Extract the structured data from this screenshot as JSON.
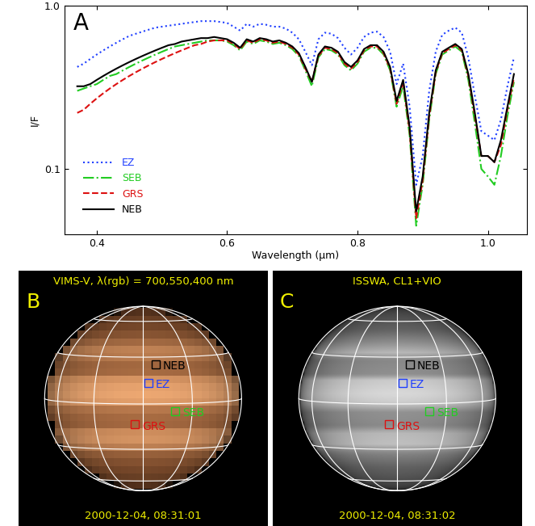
{
  "chart_data": {
    "type": "line",
    "annotations": [
      "A"
    ],
    "xlabel": "Wavelength (μm)",
    "ylabel": "I/F",
    "log": "y",
    "legend": "lower left",
    "xlim": [
      0.35,
      1.06
    ],
    "ylim": [
      0.04,
      1.0
    ],
    "xticks": [
      0.4,
      0.6,
      0.8,
      {
        "value": 1.0,
        "label": "1.0"
      }
    ],
    "yticks": [
      0.1,
      {
        "value": 1.0,
        "label": "1.0"
      }
    ],
    "x": [
      0.37,
      0.38,
      0.39,
      0.4,
      0.41,
      0.42,
      0.43,
      0.44,
      0.45,
      0.46,
      0.47,
      0.48,
      0.49,
      0.5,
      0.51,
      0.52,
      0.53,
      0.54,
      0.55,
      0.56,
      0.57,
      0.58,
      0.59,
      0.6,
      0.61,
      0.62,
      0.63,
      0.64,
      0.65,
      0.66,
      0.67,
      0.68,
      0.69,
      0.7,
      0.71,
      0.72,
      0.73,
      0.74,
      0.75,
      0.76,
      0.77,
      0.78,
      0.79,
      0.8,
      0.81,
      0.82,
      0.83,
      0.84,
      0.85,
      0.86,
      0.87,
      0.88,
      0.89,
      0.9,
      0.91,
      0.92,
      0.93,
      0.94,
      0.95,
      0.96,
      0.97,
      0.98,
      0.99,
      1.0,
      1.01,
      1.02,
      1.03,
      1.04
    ],
    "series": [
      {
        "name": "EZ",
        "color": "#1f3fff",
        "line_style": "dotted",
        "values": [
          0.42,
          0.44,
          0.47,
          0.5,
          0.53,
          0.56,
          0.59,
          0.62,
          0.65,
          0.67,
          0.69,
          0.71,
          0.73,
          0.74,
          0.75,
          0.76,
          0.77,
          0.78,
          0.79,
          0.8,
          0.8,
          0.8,
          0.79,
          0.78,
          0.74,
          0.7,
          0.77,
          0.74,
          0.77,
          0.76,
          0.74,
          0.74,
          0.72,
          0.68,
          0.62,
          0.52,
          0.43,
          0.62,
          0.68,
          0.67,
          0.63,
          0.55,
          0.5,
          0.55,
          0.64,
          0.68,
          0.69,
          0.64,
          0.52,
          0.33,
          0.44,
          0.24,
          0.08,
          0.12,
          0.3,
          0.52,
          0.66,
          0.7,
          0.73,
          0.68,
          0.48,
          0.28,
          0.17,
          0.16,
          0.15,
          0.2,
          0.32,
          0.48
        ]
      },
      {
        "name": "SEB",
        "color": "#22cc22",
        "line_style": "dash_dot",
        "values": [
          0.3,
          0.31,
          0.32,
          0.33,
          0.35,
          0.37,
          0.38,
          0.4,
          0.42,
          0.44,
          0.46,
          0.48,
          0.5,
          0.52,
          0.54,
          0.56,
          0.57,
          0.58,
          0.59,
          0.6,
          0.61,
          0.61,
          0.61,
          0.6,
          0.57,
          0.53,
          0.6,
          0.58,
          0.61,
          0.6,
          0.58,
          0.59,
          0.57,
          0.54,
          0.49,
          0.4,
          0.32,
          0.48,
          0.54,
          0.53,
          0.5,
          0.43,
          0.4,
          0.44,
          0.52,
          0.55,
          0.55,
          0.5,
          0.4,
          0.24,
          0.32,
          0.16,
          0.045,
          0.08,
          0.2,
          0.38,
          0.5,
          0.53,
          0.56,
          0.52,
          0.35,
          0.19,
          0.1,
          0.09,
          0.08,
          0.12,
          0.21,
          0.34
        ]
      },
      {
        "name": "GRS",
        "color": "#dd1111",
        "line_style": "dashed",
        "values": [
          0.22,
          0.23,
          0.25,
          0.27,
          0.29,
          0.31,
          0.33,
          0.35,
          0.37,
          0.39,
          0.41,
          0.43,
          0.45,
          0.47,
          0.49,
          0.51,
          0.53,
          0.55,
          0.57,
          0.58,
          0.6,
          0.61,
          0.61,
          0.61,
          0.58,
          0.54,
          0.61,
          0.59,
          0.62,
          0.61,
          0.59,
          0.6,
          0.58,
          0.55,
          0.5,
          0.41,
          0.34,
          0.49,
          0.55,
          0.54,
          0.51,
          0.44,
          0.41,
          0.45,
          0.53,
          0.56,
          0.56,
          0.51,
          0.41,
          0.25,
          0.34,
          0.17,
          0.05,
          0.085,
          0.21,
          0.39,
          0.51,
          0.54,
          0.57,
          0.53,
          0.37,
          0.21,
          0.12,
          0.12,
          0.11,
          0.14,
          0.23,
          0.36
        ]
      },
      {
        "name": "NEB",
        "color": "#000000",
        "line_style": "solid",
        "values": [
          0.32,
          0.32,
          0.33,
          0.35,
          0.37,
          0.39,
          0.41,
          0.43,
          0.45,
          0.47,
          0.49,
          0.51,
          0.53,
          0.55,
          0.57,
          0.58,
          0.6,
          0.61,
          0.62,
          0.63,
          0.63,
          0.64,
          0.63,
          0.62,
          0.59,
          0.55,
          0.62,
          0.6,
          0.63,
          0.62,
          0.6,
          0.61,
          0.59,
          0.56,
          0.51,
          0.42,
          0.34,
          0.5,
          0.56,
          0.55,
          0.52,
          0.45,
          0.42,
          0.46,
          0.54,
          0.57,
          0.57,
          0.52,
          0.42,
          0.26,
          0.35,
          0.18,
          0.055,
          0.09,
          0.22,
          0.4,
          0.52,
          0.55,
          0.58,
          0.54,
          0.38,
          0.22,
          0.12,
          0.12,
          0.11,
          0.15,
          0.24,
          0.38
        ]
      }
    ]
  },
  "images": [
    {
      "panel": "B",
      "type": "color_image",
      "title": "VIMS-V, λ(rgb) = 700,550,400 nm",
      "date": "2000-12-04, 08:31:01",
      "regions": [
        {
          "name": "NEB",
          "color": "#000000"
        },
        {
          "name": "EZ",
          "color": "#1f3fff"
        },
        {
          "name": "SEB",
          "color": "#22cc22"
        },
        {
          "name": "GRS",
          "color": "#dd1111"
        }
      ]
    },
    {
      "panel": "C",
      "type": "grayscale_image",
      "title": "ISSWA, CL1+VIO",
      "date": "2000-12-04, 08:31:02",
      "regions": [
        {
          "name": "NEB",
          "color": "#000000"
        },
        {
          "name": "EZ",
          "color": "#1f3fff"
        },
        {
          "name": "SEB",
          "color": "#22cc22"
        },
        {
          "name": "GRS",
          "color": "#dd1111"
        }
      ]
    }
  ]
}
